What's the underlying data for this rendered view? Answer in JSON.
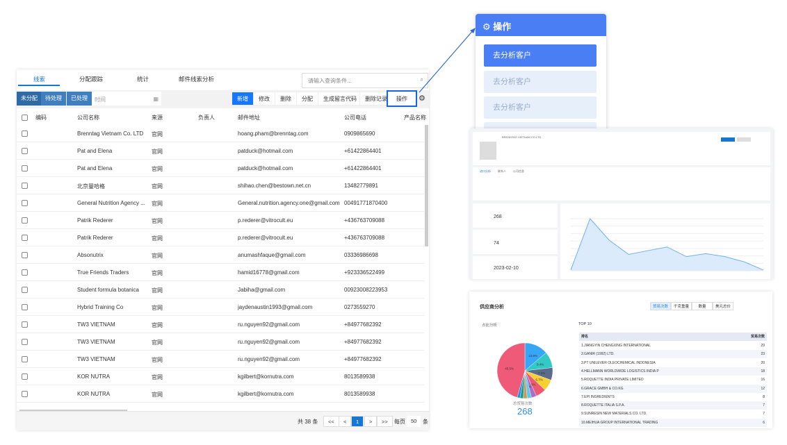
{
  "tabs": [
    "线索",
    "分配跟踪",
    "统计",
    "邮件线索分析"
  ],
  "search_placeholder": "请输入查询条件...",
  "status_filters": [
    "未分配",
    "待处理",
    "已处理"
  ],
  "time_placeholder": "时间",
  "actions": [
    "新增",
    "修改",
    "删除",
    "分配",
    "生成留言代码",
    "删除记录",
    "操作"
  ],
  "columns": [
    "编码",
    "公司名称",
    "来源",
    "负责人",
    "邮件地址",
    "公司电话",
    "产品名称"
  ],
  "rows": [
    [
      "Brenntag Vietnam Co. LTD",
      "官网",
      "hoang.pham@brenntag.com",
      "0909865690"
    ],
    [
      "Pat and Elena",
      "官网",
      "patduck@hotmail.com",
      "+61422864401"
    ],
    [
      "Pat and Elena",
      "官网",
      "patduck@hotmail.com",
      "+61422864401"
    ],
    [
      "北京曼哈格",
      "官网",
      "shihao.chen@bestown.net.cn",
      "13482779891"
    ],
    [
      "General Nutrition Agency ...",
      "官网",
      "General.nutrition.agency.one@gmail.com",
      "00491771870400"
    ],
    [
      "Patrik Rederer",
      "官网",
      "p.rederer@vitrocult.eu",
      "+436763709088"
    ],
    [
      "Patrik Rederer",
      "官网",
      "p.rederer@vitrocult.eu",
      "+436763709088"
    ],
    [
      "Absonutrix",
      "官网",
      "anumashfaque@gmail.com",
      "03336986698"
    ],
    [
      "True Friends Traders",
      "官网",
      "hamid16778@gmail.com",
      "+923336522499"
    ],
    [
      "Student formula botanica",
      "官网",
      "Jabiha@gmail.com",
      "00923008223953"
    ],
    [
      "Hybrid Training Co",
      "官网",
      "jaydenaustin1993@gmail.com",
      "0273559270"
    ],
    [
      "TW3 VIETNAM",
      "官网",
      "ru.nguyen92@gmail.com",
      "+84977682392"
    ],
    [
      "TW3 VIETNAM",
      "官网",
      "ru.nguyen92@gmail.com",
      "+84977682392"
    ],
    [
      "TW3 VIETNAM",
      "官网",
      "ru.nguyen92@gmail.com",
      "+84977682392"
    ],
    [
      "KOR NUTRA",
      "官网",
      "kgilbert@kornutra.com",
      "8013589938"
    ],
    [
      "KOR NUTRA",
      "官网",
      "kgilbert@kornutra.com",
      "8013589938"
    ]
  ],
  "pager": {
    "total": "共 38 条",
    "first": "<<",
    "prev": "<",
    "page": "1",
    "next": ">",
    "last": ">>",
    "per_page_label": "每页",
    "per_page": "50",
    "unit": "条"
  },
  "menu": {
    "title": "操作",
    "items": [
      "去分析客户",
      "去分析客户",
      "去分析客户"
    ]
  },
  "dash": {
    "company": "BRENNTAG VIETNAM CO.LTD",
    "tabs": [
      "进口分析",
      "联系人",
      "公司信息"
    ],
    "stats": [
      {
        "value": "268"
      },
      {
        "value": "74"
      },
      {
        "value": "2023-02-10"
      }
    ],
    "line_values": [
      1,
      70,
      41,
      22,
      27,
      32,
      19,
      23,
      19,
      12,
      1
    ],
    "ymax": 70
  },
  "supplier": {
    "title": "供应商分析",
    "toggles": [
      "贸易次数",
      "千克重量",
      "数量",
      "美元总价"
    ],
    "pie_label": "占比分析",
    "total_label": "总贸易次数",
    "total": "268",
    "top_label": "TOP 10",
    "col_rank": "排名",
    "col_count": "贸易次数",
    "pie": [
      {
        "pct": 45.5,
        "color": "#ef5a78"
      },
      {
        "pct": 13.8,
        "color": "#36a6f5"
      },
      {
        "pct": 9.4,
        "color": "#33c9c4"
      },
      {
        "pct": 7.3,
        "color": "#5a6b8c"
      },
      {
        "pct": 6.7,
        "color": "#f7d032"
      },
      {
        "pct": 6.0,
        "color": "#ee5a6f"
      },
      {
        "pct": 3.0,
        "color": "#a96fcc"
      },
      {
        "pct": 2.5,
        "color": "#62c7ef"
      },
      {
        "pct": 2.2,
        "color": "#c99a55"
      },
      {
        "pct": 2.0,
        "color": "#1b9e8e"
      },
      {
        "pct": 1.6,
        "color": "#2a8ae0"
      }
    ],
    "top": [
      [
        "1.JIANGYIN CHENGXING INTERNATIONAL",
        "29"
      ],
      [
        "2.GANIR (1992) LTD.",
        "23"
      ],
      [
        "3.PT UNILEVER OLEOCHEMICAL INDONESIA",
        "20"
      ],
      [
        "4.HELLMANN WORLDWIDE LOGISTICS INDIA P",
        "18"
      ],
      [
        "5.ROQUETTE INDIA PRIVATE LIMITED",
        "16"
      ],
      [
        "6.GRACE GMBH & CO.KG",
        "12"
      ],
      [
        "7.EPI INGREDIENTS",
        "8"
      ],
      [
        "8.ROQUETTE ITALIA S.P.A.",
        "7"
      ],
      [
        "9.SUNRESIN NEW MATERIALS CO. LTD.",
        "7"
      ],
      [
        "10.MEIHUA GROUP INTERNATIONAL TRADING",
        "6"
      ]
    ]
  }
}
